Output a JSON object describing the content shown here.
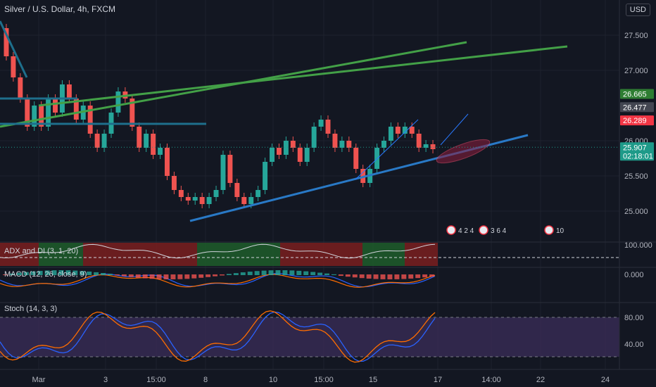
{
  "header": {
    "title": "Silver / U.S. Dollar, 4h, FXCM",
    "currency_button": "USD"
  },
  "price_axis": {
    "ticks": [
      "27.500",
      "27.000",
      "26.000",
      "25.500",
      "25.000"
    ],
    "tick_values": [
      27.5,
      27.0,
      26.0,
      25.5,
      25.0
    ],
    "badges": [
      {
        "text": "26.665",
        "value": 26.665,
        "color": "#2e7d32"
      },
      {
        "text": "26.477",
        "value": 26.477,
        "color": "#434651"
      },
      {
        "text": "26.289",
        "value": 26.289,
        "color": "#f23645"
      },
      {
        "text": "25.907",
        "value": 25.907,
        "color": "#1e9a89",
        "sub": "02:18:01"
      }
    ]
  },
  "time_axis": {
    "labels": [
      "Mar",
      "3",
      "15:00",
      "8",
      "10",
      "15:00",
      "15",
      "17",
      "14:00",
      "22",
      "24"
    ]
  },
  "panes": {
    "adx": {
      "label": "ADX and DI (3, 1, 20)",
      "axis_label": "100.000"
    },
    "macd": {
      "label": "MACD (12, 26, close, 9)",
      "axis_label": "0.000"
    },
    "stoch": {
      "label": "Stoch (14, 3, 3)",
      "axis_labels": [
        "80.00",
        "40.00"
      ]
    }
  },
  "events": [
    {
      "label": "4 2 4"
    },
    {
      "label": "3 6 4"
    },
    {
      "label": "10"
    }
  ],
  "colors": {
    "bull": "#26a69a",
    "bear": "#ef5350",
    "trend_green": "#43a047",
    "trend_blue": "#2979c6",
    "teal": "#1e6f8c"
  },
  "chart_data": {
    "type": "candlestick",
    "title": "Silver / U.S. Dollar, 4h, FXCM",
    "ylim": [
      24.6,
      28.0
    ],
    "candles": [
      [
        27.6,
        27.2
      ],
      [
        27.2,
        26.9
      ],
      [
        26.9,
        26.6
      ],
      [
        26.6,
        26.2
      ],
      [
        26.2,
        26.5
      ],
      [
        26.5,
        26.2
      ],
      [
        26.2,
        26.6
      ],
      [
        26.6,
        26.4
      ],
      [
        26.4,
        26.8
      ],
      [
        26.8,
        26.6
      ],
      [
        26.6,
        26.3
      ],
      [
        26.3,
        26.5
      ],
      [
        26.5,
        26.1
      ],
      [
        26.1,
        25.9
      ],
      [
        25.9,
        26.1
      ],
      [
        26.1,
        26.4
      ],
      [
        26.4,
        26.7
      ],
      [
        26.7,
        26.6
      ],
      [
        26.6,
        26.2
      ],
      [
        26.2,
        25.9
      ],
      [
        25.9,
        26.1
      ],
      [
        26.1,
        25.8
      ],
      [
        25.8,
        25.9
      ],
      [
        25.9,
        25.5
      ],
      [
        25.5,
        25.3
      ],
      [
        25.3,
        25.2
      ],
      [
        25.2,
        25.15
      ],
      [
        25.15,
        25.2
      ],
      [
        25.2,
        25.1
      ],
      [
        25.1,
        25.2
      ],
      [
        25.2,
        25.3
      ],
      [
        25.3,
        25.8
      ],
      [
        25.8,
        25.4
      ],
      [
        25.4,
        25.2
      ],
      [
        25.2,
        25.1
      ],
      [
        25.1,
        25.2
      ],
      [
        25.2,
        25.3
      ],
      [
        25.3,
        25.7
      ],
      [
        25.7,
        25.9
      ],
      [
        25.9,
        25.8
      ],
      [
        25.8,
        26.0
      ],
      [
        26.0,
        25.9
      ],
      [
        25.9,
        25.7
      ],
      [
        25.7,
        25.9
      ],
      [
        25.9,
        26.2
      ],
      [
        26.2,
        26.3
      ],
      [
        26.3,
        26.1
      ],
      [
        26.1,
        25.9
      ],
      [
        25.9,
        26.0
      ],
      [
        26.0,
        25.9
      ],
      [
        25.9,
        25.6
      ],
      [
        25.6,
        25.4
      ],
      [
        25.4,
        25.6
      ],
      [
        25.6,
        25.9
      ],
      [
        25.9,
        26.0
      ],
      [
        26.0,
        26.2
      ],
      [
        26.2,
        26.1
      ],
      [
        26.1,
        26.2
      ],
      [
        26.2,
        26.1
      ],
      [
        26.1,
        25.9
      ],
      [
        25.9,
        25.95
      ],
      [
        25.95,
        25.88
      ]
    ],
    "trendlines_note": "ascending channel (green), ascending support (blue)"
  }
}
